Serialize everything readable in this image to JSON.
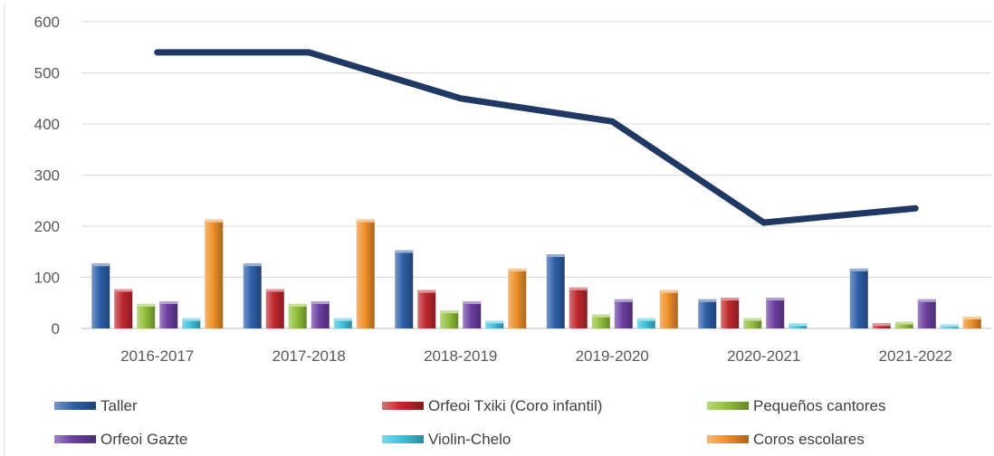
{
  "chart_data": {
    "type": "bar",
    "categories": [
      "2016-2017",
      "2017-2018",
      "2018-2019",
      "2019-2020",
      "2020-2021",
      "2021-2022"
    ],
    "series": [
      {
        "name": "Taller",
        "color": "#2E5FA8",
        "values": [
          127,
          127,
          153,
          145,
          57,
          117
        ]
      },
      {
        "name": "Orfeoi Txiki (Coro infantil)",
        "color": "#C0282E",
        "values": [
          77,
          77,
          75,
          80,
          60,
          10
        ]
      },
      {
        "name": "Pequeños cantores",
        "color": "#92C03A",
        "values": [
          48,
          48,
          35,
          27,
          20,
          13
        ]
      },
      {
        "name": "Orfeoi Gazte",
        "color": "#6B3FA0",
        "values": [
          53,
          53,
          53,
          57,
          60,
          57
        ]
      },
      {
        "name": "Violin-Chelo",
        "color": "#3FC3DC",
        "values": [
          20,
          20,
          15,
          20,
          10,
          8
        ]
      },
      {
        "name": "Coros escolares",
        "color": "#F0902A",
        "values": [
          213,
          213,
          117,
          75,
          0,
          23
        ]
      }
    ],
    "line_series": {
      "color": "#1F3864",
      "values": [
        540,
        540,
        450,
        405,
        207,
        235
      ]
    },
    "ylim": [
      0,
      600
    ],
    "yticks": [
      "0",
      "100",
      "200",
      "300",
      "400",
      "500",
      "600"
    ],
    "grid": true,
    "legend_position": "bottom",
    "title": "",
    "xlabel": "",
    "ylabel": ""
  }
}
